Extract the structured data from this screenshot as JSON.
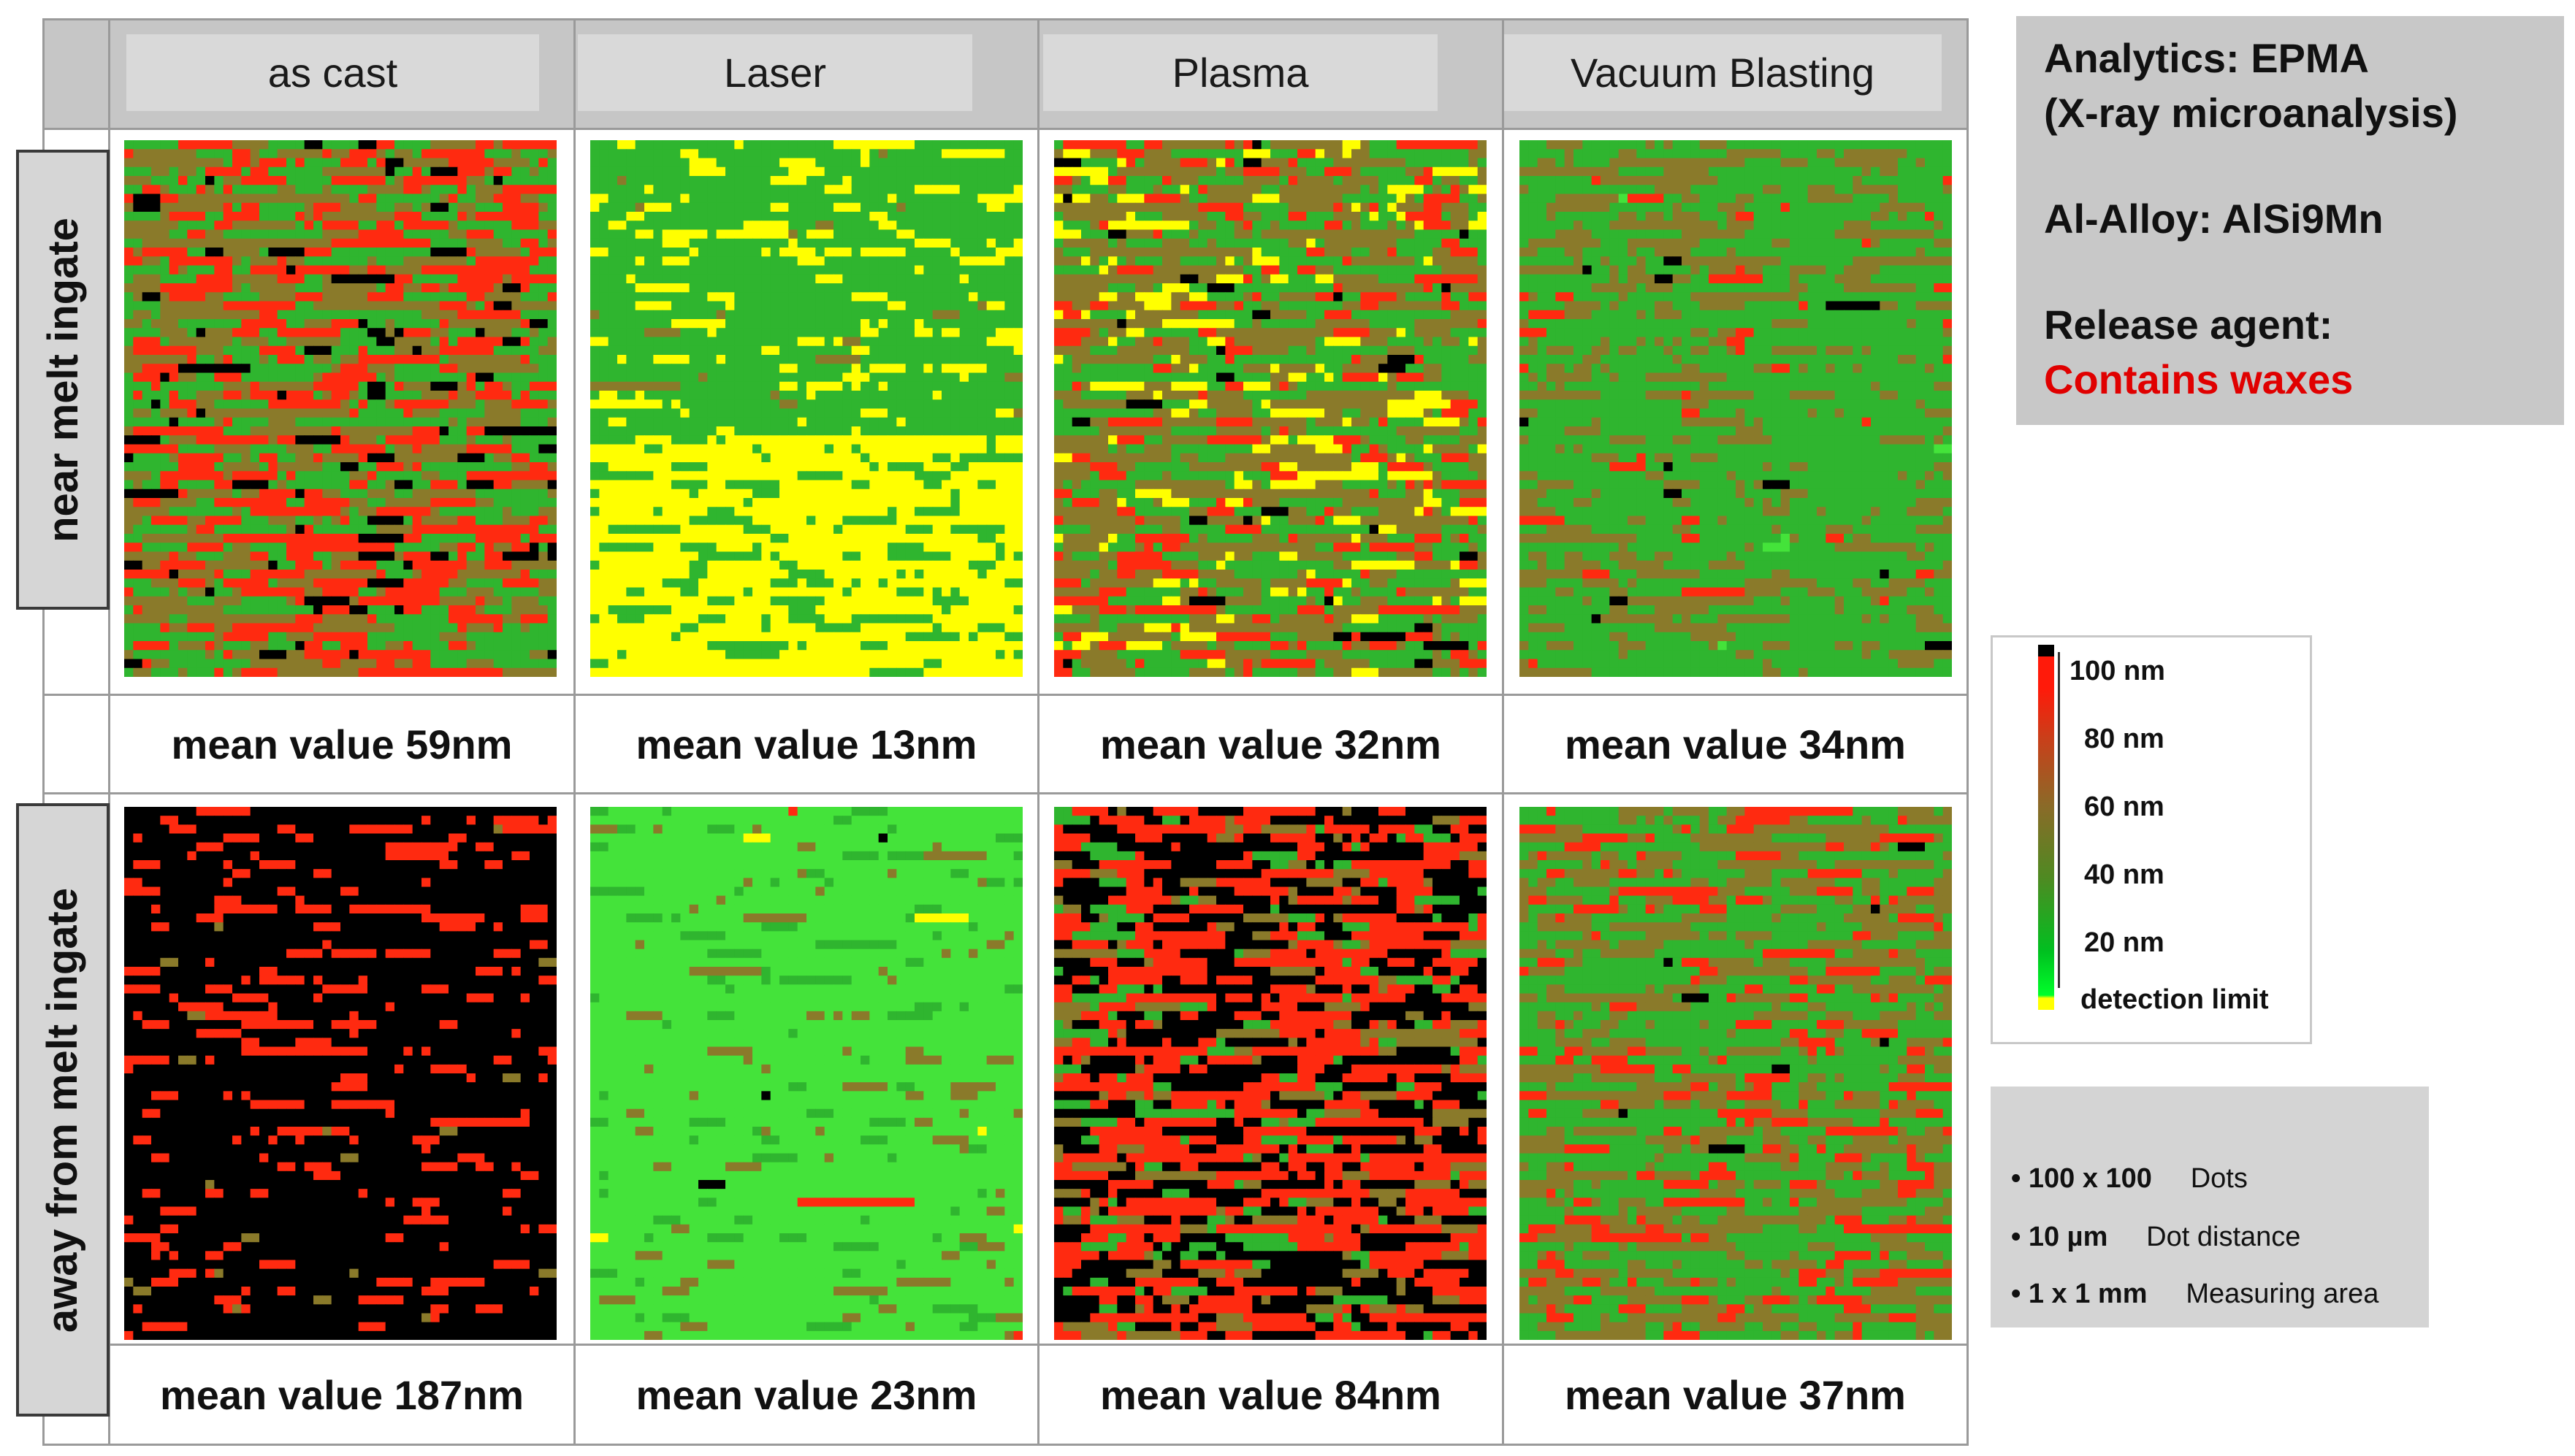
{
  "columns": [
    {
      "label": "as cast"
    },
    {
      "label": "Laser"
    },
    {
      "label": "Plasma"
    },
    {
      "label": "Vacuum Blasting"
    }
  ],
  "rows": [
    {
      "label": "near melt ingate",
      "means": [
        "mean value 59nm",
        "mean value 13nm",
        "mean value 32nm",
        "mean value 34nm"
      ]
    },
    {
      "label": "away from melt ingate",
      "means": [
        "mean value 187nm",
        "mean value 23nm",
        "mean value 84nm",
        "mean value 37nm"
      ]
    }
  ],
  "info": {
    "analytics": "Analytics:  EPMA",
    "analytics_sub": "(X-ray microanalysis)",
    "alloy": "Al-Alloy:  AlSi9Mn",
    "release_label": "Release agent:",
    "release_value": "Contains waxes",
    "release_color": "#e00000"
  },
  "legend": {
    "ticks": [
      "100 nm",
      "80 nm",
      "60 nm",
      "40 nm",
      "20 nm"
    ],
    "detection": "detection limit",
    "colors": {
      "top": "#000000",
      "high": "#ff1a0a",
      "mid": "#8b6a28",
      "low": "#00c020",
      "limit": "#ffff00"
    }
  },
  "specs": [
    {
      "bold": "• 100 x 100",
      "text": "Dots"
    },
    {
      "bold": "• 10 µm",
      "text": "Dot distance"
    },
    {
      "bold": "• 1 x 1 mm",
      "text": "Measuring area"
    }
  ],
  "map_palette": {
    "black": "#000000",
    "red": "#ff2a10",
    "brown": "#8a7a2a",
    "green": "#2fb52f",
    "lightgreen": "#44e33a",
    "yellow": "#ffff00"
  }
}
